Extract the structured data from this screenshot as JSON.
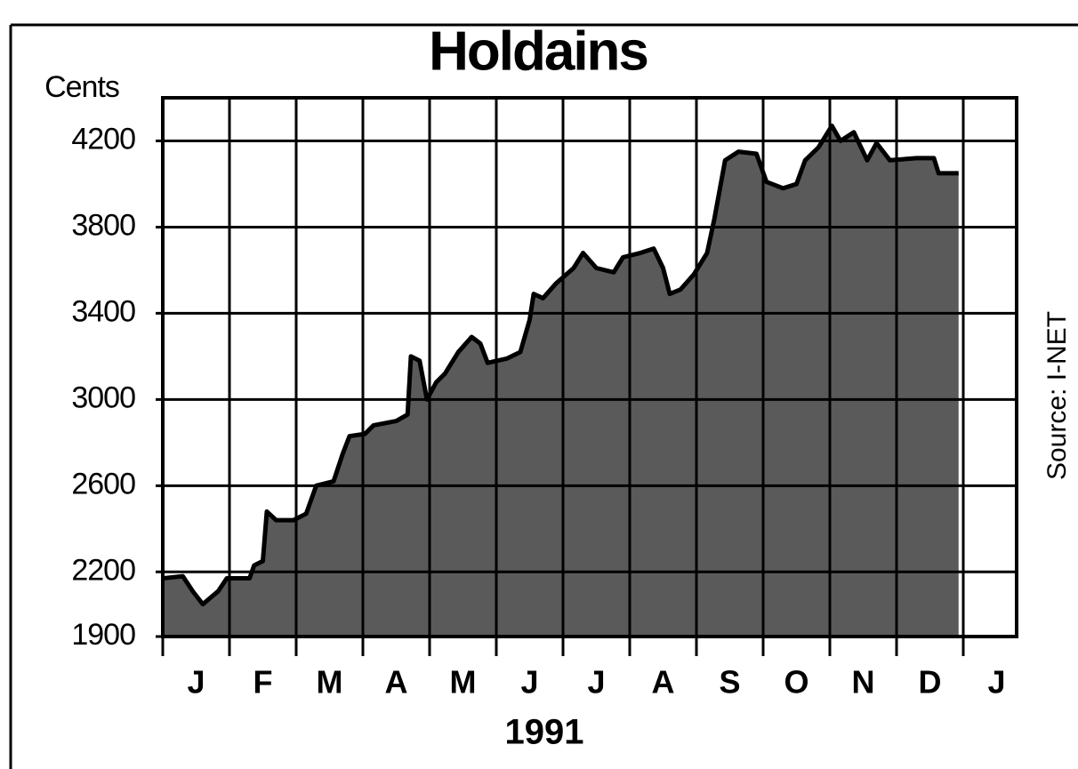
{
  "chart_data": {
    "type": "area",
    "title": "Holdains",
    "ylabel": "Cents",
    "xlabel": "1991",
    "source": "Source: I-NET",
    "x": [
      0,
      0.3,
      0.45,
      0.6,
      0.83,
      0.96,
      1.3,
      1.37,
      1.5,
      1.56,
      1.7,
      1.96,
      2.15,
      2.3,
      2.56,
      2.7,
      2.8,
      3.03,
      3.16,
      3.5,
      3.67,
      3.72,
      3.85,
      3.96,
      4.1,
      4.23,
      4.43,
      4.63,
      4.76,
      4.87,
      5.16,
      5.36,
      5.5,
      5.56,
      5.7,
      5.9,
      6.16,
      6.3,
      6.5,
      6.76,
      6.9,
      7.16,
      7.36,
      7.5,
      7.6,
      7.76,
      7.96,
      8.16,
      8.27,
      8.43,
      8.63,
      8.9,
      9.05,
      9.3,
      9.5,
      9.63,
      9.83,
      10.03,
      10.16,
      10.36,
      10.56,
      10.7,
      10.9,
      11.3,
      11.56,
      11.63,
      11.93
    ],
    "values": [
      2170,
      2180,
      2110,
      2050,
      2110,
      2170,
      2170,
      2230,
      2250,
      2480,
      2440,
      2440,
      2470,
      2600,
      2620,
      2750,
      2830,
      2840,
      2880,
      2900,
      2930,
      3200,
      3180,
      3000,
      3080,
      3120,
      3220,
      3290,
      3260,
      3170,
      3190,
      3220,
      3370,
      3490,
      3470,
      3540,
      3610,
      3680,
      3610,
      3590,
      3660,
      3680,
      3700,
      3610,
      3490,
      3510,
      3580,
      3680,
      3840,
      4110,
      4150,
      4140,
      4010,
      3980,
      4000,
      4110,
      4170,
      4270,
      4200,
      4240,
      4110,
      4190,
      4110,
      4120,
      4120,
      4050,
      4050
    ],
    "color": "#5a5a5a",
    "xlim": [
      0,
      12.8
    ],
    "ylim": [
      1900,
      4400
    ],
    "yticks": [
      1900,
      2200,
      2600,
      3000,
      3400,
      3800,
      4200
    ],
    "xticks": [
      {
        "value": 0.5,
        "label": "J"
      },
      {
        "value": 1.5,
        "label": "F"
      },
      {
        "value": 2.5,
        "label": "M"
      },
      {
        "value": 3.5,
        "label": "A"
      },
      {
        "value": 4.5,
        "label": "M"
      },
      {
        "value": 5.5,
        "label": "J"
      },
      {
        "value": 6.5,
        "label": "J"
      },
      {
        "value": 7.5,
        "label": "A"
      },
      {
        "value": 8.5,
        "label": "S"
      },
      {
        "value": 9.5,
        "label": "O"
      },
      {
        "value": 10.5,
        "label": "N"
      },
      {
        "value": 11.5,
        "label": "D"
      },
      {
        "value": 12.5,
        "label": "J"
      }
    ],
    "xgrid": [
      0,
      1,
      2,
      3,
      4,
      5,
      6,
      7,
      8,
      9,
      10,
      11,
      12
    ],
    "grid": true
  }
}
